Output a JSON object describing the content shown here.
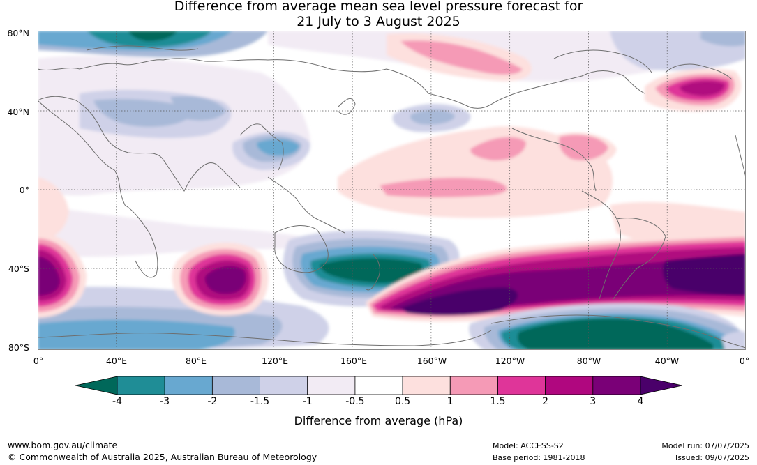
{
  "title": {
    "line1": "Difference from average mean sea level pressure forecast for",
    "line2": "21 July to 3 August 2025"
  },
  "map": {
    "lat_labels": [
      "80°N",
      "40°N",
      "0°",
      "40°S",
      "80°S"
    ],
    "lon_labels": [
      "0°",
      "40°E",
      "80°E",
      "120°E",
      "160°E",
      "160°W",
      "120°W",
      "80°W",
      "40°W",
      "0°"
    ],
    "projection": "equirectangular, Greenwich-centred (0° to 360°)",
    "gridlines": "dotted every 40°"
  },
  "legend": {
    "title": "Difference from average (hPa)",
    "tick_labels": [
      "-4",
      "-3",
      "-2",
      "-1.5",
      "-1",
      "-0.5",
      "0.5",
      "1",
      "1.5",
      "2",
      "3",
      "4"
    ],
    "colors": [
      "#00685a",
      "#1f8d96",
      "#68a8d0",
      "#a8b9d8",
      "#cfd1e8",
      "#f2ebf4",
      "#ffffff",
      "#fde0de",
      "#f59ab6",
      "#df3599",
      "#b0077f",
      "#7a0077",
      "#4a006a"
    ]
  },
  "footer": {
    "website": "www.bom.gov.au/climate",
    "copyright": "© Commonwealth of Australia 2025, Australian Bureau of Meteorology",
    "model": "Model: ACCESS-S2",
    "base_period": "Base period: 1981-2018",
    "model_run": "Model run: 07/07/2025",
    "issued": "Issued: 09/07/2025"
  }
}
